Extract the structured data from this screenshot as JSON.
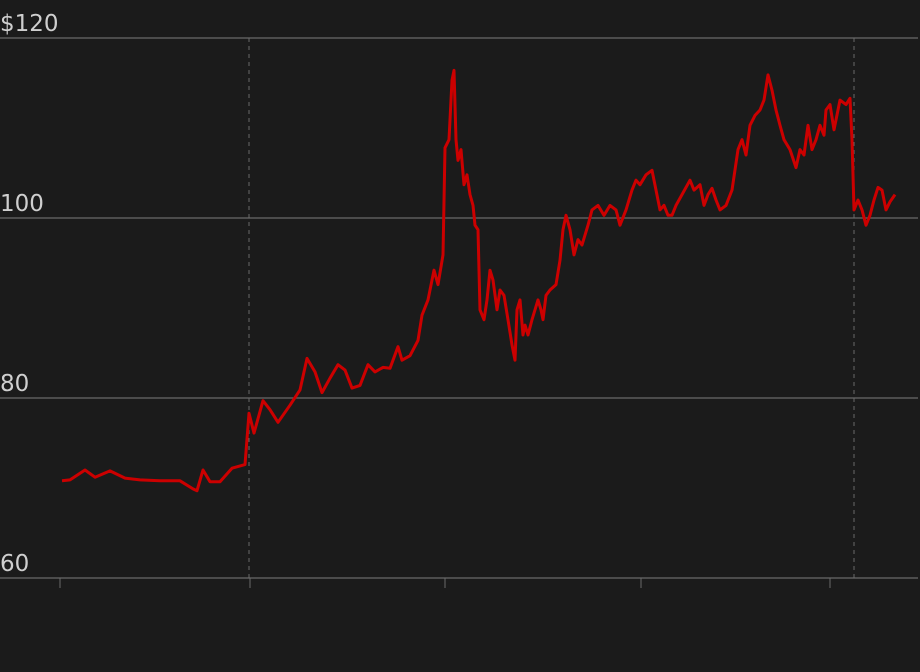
{
  "chart_data": {
    "type": "line",
    "title": "",
    "xlabel": "",
    "ylabel": "",
    "ylim": [
      60,
      120
    ],
    "y_ticks": [
      {
        "value": 120,
        "label": "$120"
      },
      {
        "value": 100,
        "label": "100"
      },
      {
        "value": 80,
        "label": "80"
      },
      {
        "value": 60,
        "label": "60"
      }
    ],
    "grid": "horizontal",
    "x_tick_marks": [
      -2,
      188,
      383,
      579,
      768
    ],
    "x_dashed_markers": [
      187,
      792
    ],
    "xlim": [
      0,
      833
    ],
    "line_color": "#cc0000",
    "series": [
      {
        "x": [
          0,
          8,
          23,
          33,
          48,
          63,
          78,
          98,
          118,
          131,
          135,
          141,
          148,
          158,
          170,
          183,
          187,
          192,
          201,
          208,
          216,
          228,
          238,
          245,
          253,
          260,
          268,
          276,
          283,
          290,
          298,
          306,
          313,
          321,
          328,
          336,
          340,
          348,
          356,
          360,
          366,
          372,
          376,
          381,
          383,
          387,
          390,
          392,
          394,
          396,
          399,
          402,
          405,
          408,
          411,
          413,
          416,
          418,
          422,
          425,
          428,
          431,
          435,
          438,
          442,
          446,
          450,
          453,
          455,
          458,
          461,
          463,
          466,
          470,
          473,
          476,
          479,
          481,
          484,
          488,
          494,
          498,
          501,
          504,
          508,
          512,
          516,
          520,
          526,
          530,
          536,
          542,
          548,
          554,
          558,
          564,
          570,
          574,
          578,
          584,
          590,
          594,
          598,
          602,
          606,
          610,
          614,
          620,
          628,
          632,
          638,
          642,
          646,
          650,
          654,
          658,
          664,
          670,
          676,
          680,
          684,
          688,
          693,
          698,
          702,
          706,
          710,
          714,
          718,
          722,
          728,
          734,
          738,
          742,
          746,
          750,
          754,
          758,
          762,
          764,
          768,
          772,
          778,
          784,
          788,
          790,
          792,
          796,
          800,
          804,
          808,
          812,
          816,
          820,
          824,
          828,
          833
        ],
        "values": [
          70.8,
          70.9,
          72.0,
          71.2,
          71.9,
          71.1,
          70.9,
          70.8,
          70.8,
          69.9,
          69.7,
          72.0,
          70.7,
          70.7,
          72.2,
          72.6,
          78.3,
          76.1,
          79.7,
          78.7,
          77.3,
          79.2,
          80.9,
          84.4,
          82.9,
          80.6,
          82.2,
          83.7,
          83.1,
          81.1,
          81.4,
          83.7,
          82.9,
          83.4,
          83.3,
          85.7,
          84.2,
          84.7,
          86.4,
          89.2,
          90.9,
          94.2,
          92.6,
          95.9,
          107.8,
          108.7,
          115.3,
          116.4,
          108.7,
          106.4,
          107.6,
          103.7,
          104.8,
          102.6,
          101.4,
          99.2,
          98.7,
          89.8,
          88.7,
          90.9,
          94.2,
          93.1,
          89.8,
          92.0,
          91.4,
          88.7,
          85.9,
          84.2,
          89.8,
          90.9,
          87.0,
          88.1,
          87.0,
          88.7,
          89.8,
          90.9,
          89.8,
          88.7,
          91.4,
          92.0,
          92.6,
          95.3,
          98.7,
          100.3,
          98.7,
          95.9,
          97.6,
          97.0,
          99.2,
          100.9,
          101.4,
          100.3,
          101.4,
          100.9,
          99.2,
          100.9,
          103.1,
          104.2,
          103.7,
          104.8,
          105.3,
          103.1,
          100.9,
          101.4,
          100.3,
          100.3,
          101.4,
          102.6,
          104.2,
          103.1,
          103.7,
          101.4,
          102.6,
          103.3,
          102.0,
          100.9,
          101.4,
          103.1,
          107.6,
          108.7,
          107.0,
          110.3,
          111.4,
          112.0,
          113.1,
          115.9,
          114.2,
          112.0,
          110.3,
          108.7,
          107.6,
          105.6,
          107.6,
          107.0,
          110.3,
          107.6,
          108.7,
          110.3,
          109.2,
          112.0,
          112.6,
          109.8,
          113.1,
          112.6,
          113.3,
          108.7,
          100.9,
          102.0,
          100.9,
          99.2,
          100.3,
          102.0,
          103.4,
          103.1,
          100.9,
          101.8,
          102.6
        ]
      }
    ]
  }
}
